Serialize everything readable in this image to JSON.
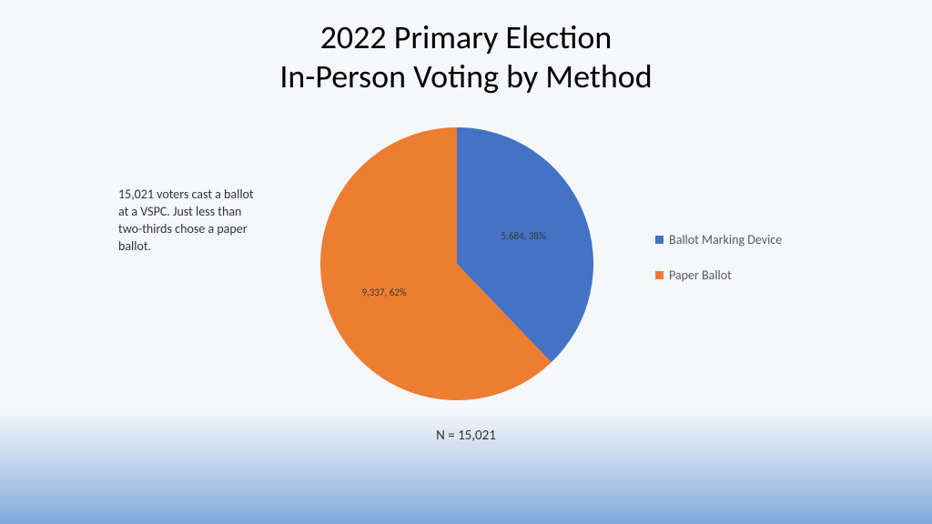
{
  "title": {
    "line1": "2022 Primary Election",
    "line2": "In-Person Voting by Method",
    "fontsize": 36,
    "color": "#000000"
  },
  "caption": {
    "text": "15,021 voters cast a ballot at a VSPC. Just less than two-thirds chose a paper ballot.",
    "fontsize": 14,
    "color": "#333333"
  },
  "chart": {
    "type": "pie",
    "total_label": "N = 15,021",
    "radius": 150,
    "start_angle_deg": 0,
    "background_color": "#f5f7fa",
    "slices": [
      {
        "name": "Ballot Marking Device",
        "value": 5684,
        "percent": 38,
        "color": "#4472c4",
        "label": "5,684, 38%"
      },
      {
        "name": "Paper Ballot",
        "value": 9337,
        "percent": 62,
        "color": "#ed7d31",
        "label": "9,337, 62%"
      }
    ],
    "label_fontsize": 11,
    "label_color": "#3a3a3a"
  },
  "legend": {
    "fontsize": 14,
    "color": "#595959",
    "items": [
      {
        "label": "Ballot Marking Device",
        "color": "#4472c4"
      },
      {
        "label": "Paper Ballot",
        "color": "#ed7d31"
      }
    ]
  },
  "gradient": {
    "top": "#f5f7fa",
    "mid": "#c5d6ef",
    "bottom": "#7fa8da"
  }
}
